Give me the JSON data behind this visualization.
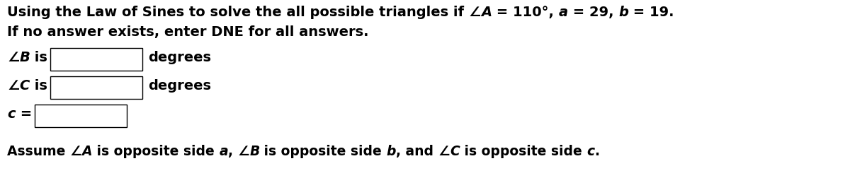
{
  "bg_color": "#ffffff",
  "text_color": "#000000",
  "box_edge_color": "#000000",
  "box_fill": "#ffffff",
  "line1_normal": "Using the Law of Sines to solve the all possible triangles if ",
  "angle_sym": "∠",
  "line1_var1": "A",
  "line1_eq1": " = 110°, ",
  "line1_var2": "a",
  "line1_eq2": " = 29, ",
  "line1_var3": "b",
  "line1_eq3": " = 19.",
  "line2": "If no answer exists, enter DNE for all answers.",
  "row1_pre": "∠",
  "row1_var": "B",
  "row1_post": " is",
  "row1_suffix": "degrees",
  "row2_pre": "∠",
  "row2_var": "C",
  "row2_post": " is",
  "row2_suffix": "degrees",
  "row3_var": "c",
  "row3_eq": " =",
  "footer_1": "Assume ",
  "footer_2": "∠",
  "footer_3": "A",
  "footer_4": " is opposite side ",
  "footer_5": "a",
  "footer_6": ", ",
  "footer_7": "∠",
  "footer_8": "B",
  "footer_9": " is opposite side ",
  "footer_10": "b",
  "footer_11": ", and ",
  "footer_12": "∠",
  "footer_13": "C",
  "footer_14": " is opposite side ",
  "footer_15": "c",
  "footer_16": ".",
  "main_fontsize": 14,
  "body_fontsize": 14,
  "footer_fontsize": 13.5
}
